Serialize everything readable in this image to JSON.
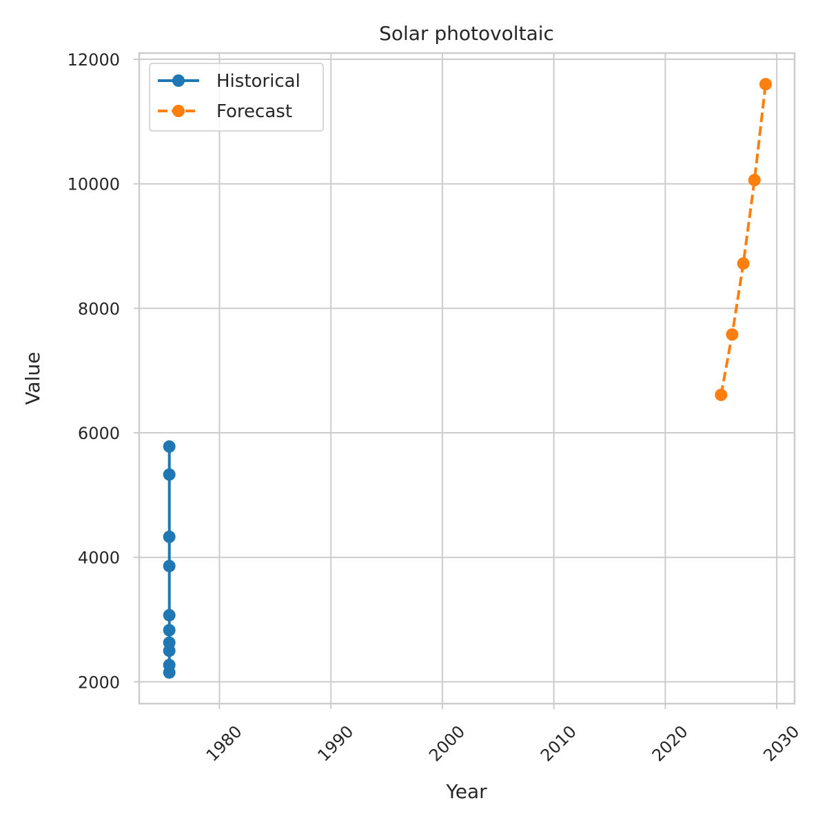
{
  "chart_data": {
    "type": "line",
    "title": "Solar photovoltaic",
    "xlabel": "Year",
    "ylabel": "Value",
    "xlim": [
      1972.8,
      2031.6
    ],
    "ylim": [
      1650,
      12100
    ],
    "xticks": [
      1980,
      1990,
      2000,
      2010,
      2020,
      2030
    ],
    "yticks": [
      2000,
      4000,
      6000,
      8000,
      10000,
      12000
    ],
    "grid": true,
    "legend_position": "top-left",
    "series": [
      {
        "name": "Historical",
        "color": "#1f77b4",
        "linestyle": "solid",
        "x": [
          1975.5,
          1975.5,
          1975.5,
          1975.5,
          1975.5,
          1975.5,
          1975.5,
          1975.5,
          1975.5,
          1975.5
        ],
        "y": [
          2150,
          2270,
          2500,
          2630,
          2830,
          3070,
          3860,
          4330,
          5330,
          5780
        ]
      },
      {
        "name": "Forecast",
        "color": "#ff7f0e",
        "linestyle": "dashed",
        "x": [
          2025,
          2026,
          2027,
          2028,
          2029
        ],
        "y": [
          6610,
          7580,
          8720,
          10060,
          11600
        ]
      }
    ]
  }
}
